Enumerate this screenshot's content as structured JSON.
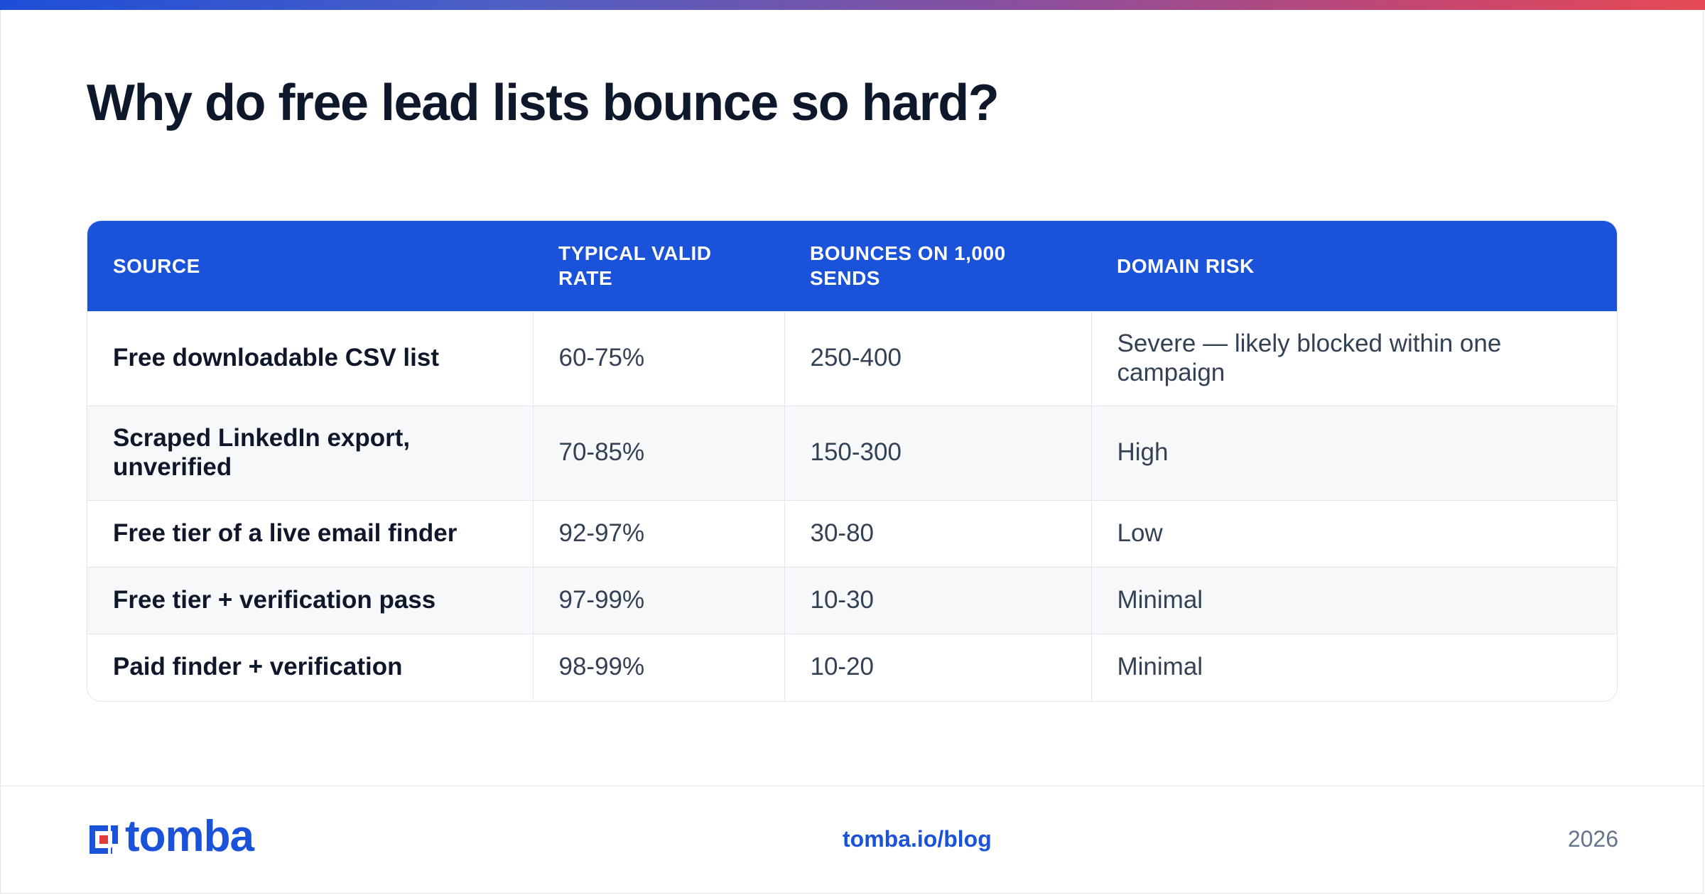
{
  "title": "Why do free lead lists bounce so hard?",
  "table": {
    "headers": [
      "SOURCE",
      "TYPICAL VALID RATE",
      "BOUNCES ON 1,000 SENDS",
      "DOMAIN RISK"
    ],
    "rows": [
      [
        "Free downloadable CSV list",
        "60-75%",
        "250-400",
        "Severe — likely blocked within one campaign"
      ],
      [
        "Scraped LinkedIn export, unverified",
        "70-85%",
        "150-300",
        "High"
      ],
      [
        "Free tier of a live email finder",
        "92-97%",
        "30-80",
        "Low"
      ],
      [
        "Free tier + verification pass",
        "97-99%",
        "10-30",
        "Minimal"
      ],
      [
        "Paid finder + verification",
        "98-99%",
        "10-20",
        "Minimal"
      ]
    ]
  },
  "footer": {
    "logo_text": "tomba",
    "link": "tomba.io/blog",
    "year": "2026"
  },
  "colors": {
    "accent": "#1b52da",
    "logo_red": "#e23b3b",
    "title": "#0f172a"
  },
  "icons": {
    "logo": "tomba-logo-icon"
  }
}
